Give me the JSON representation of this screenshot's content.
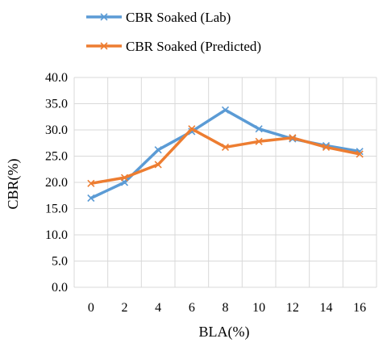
{
  "chart_data": {
    "type": "line",
    "x": [
      0,
      2,
      4,
      6,
      8,
      10,
      12,
      14,
      16
    ],
    "xlabel": "BLA(%)",
    "ylabel": "CBR(%)",
    "ylim": [
      0,
      40
    ],
    "yticks": [
      "0.0",
      "5.0",
      "10.0",
      "15.0",
      "20.0",
      "25.0",
      "30.0",
      "35.0",
      "40.0"
    ],
    "xticks": [
      "0",
      "2",
      "4",
      "6",
      "8",
      "10",
      "12",
      "14",
      "16"
    ],
    "grid": true,
    "legend_position": "top",
    "series": [
      {
        "name": "CBR Soaked (Lab)",
        "color": "#5b9bd5",
        "marker": "x",
        "values": [
          17.0,
          20.0,
          26.2,
          29.7,
          33.8,
          30.2,
          28.3,
          27.0,
          25.9
        ]
      },
      {
        "name": "CBR Soaked (Predicted)",
        "color": "#ed7d31",
        "marker": "x",
        "values": [
          19.8,
          20.9,
          23.4,
          30.2,
          26.7,
          27.8,
          28.5,
          26.7,
          25.4
        ]
      }
    ]
  }
}
